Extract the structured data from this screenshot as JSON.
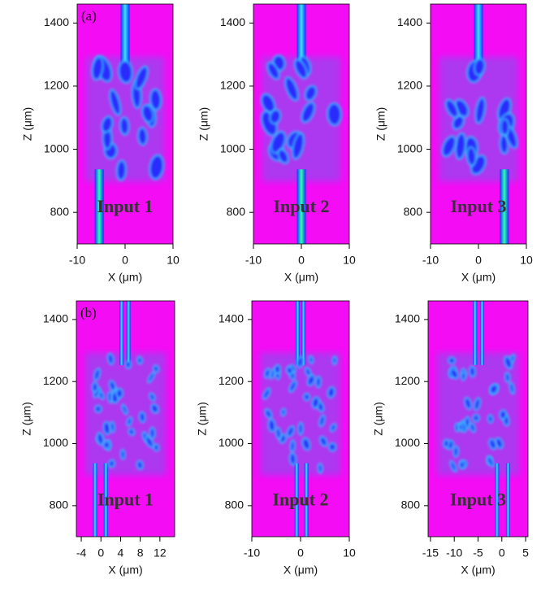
{
  "chart_data": [
    {
      "type": "heatmap",
      "panel_label": "(a)",
      "annotation": "Input 1",
      "xlabel": "X (μm)",
      "ylabel": "Z (μm)",
      "xlim": [
        -10,
        10
      ],
      "ylim": [
        700,
        1460
      ],
      "xticks": [
        -10,
        0,
        10
      ],
      "yticks": [
        800,
        1000,
        1200,
        1400
      ]
    },
    {
      "type": "heatmap",
      "annotation": "Input 2",
      "xlabel": "X (μm)",
      "ylabel": "Z (μm)",
      "xlim": [
        -10,
        10
      ],
      "ylim": [
        700,
        1460
      ],
      "xticks": [
        -10,
        0,
        10
      ],
      "yticks": [
        800,
        1000,
        1200,
        1400
      ]
    },
    {
      "type": "heatmap",
      "annotation": "Input 3",
      "xlabel": "X (μm)",
      "ylabel": "Z (μm)",
      "xlim": [
        -10,
        10
      ],
      "ylim": [
        700,
        1460
      ],
      "xticks": [
        -10,
        0,
        10
      ],
      "yticks": [
        800,
        1000,
        1200,
        1400
      ]
    },
    {
      "type": "heatmap",
      "panel_label": "(b)",
      "annotation": "Input 1",
      "xlabel": "X (μm)",
      "ylabel": "Z (μm)",
      "xlim": [
        -5,
        15
      ],
      "ylim": [
        700,
        1460
      ],
      "xticks": [
        -4,
        0,
        4,
        8,
        12
      ],
      "yticks": [
        800,
        1000,
        1200,
        1400
      ]
    },
    {
      "type": "heatmap",
      "annotation": "Input 2",
      "xlabel": "X (μm)",
      "ylabel": "Z (μm)",
      "xlim": [
        -10,
        10
      ],
      "ylim": [
        700,
        1460
      ],
      "xticks": [
        -10,
        0,
        10
      ],
      "yticks": [
        800,
        1000,
        1200,
        1400
      ]
    },
    {
      "type": "heatmap",
      "annotation": "Input 3",
      "xlabel": "X (μm)",
      "ylabel": "Z (μm)",
      "xlim": [
        -15.5,
        5.5
      ],
      "ylim": [
        700,
        1460
      ],
      "xticks": [
        -15,
        -10,
        -5,
        0,
        5
      ],
      "yticks": [
        800,
        1000,
        1200,
        1400
      ]
    }
  ]
}
